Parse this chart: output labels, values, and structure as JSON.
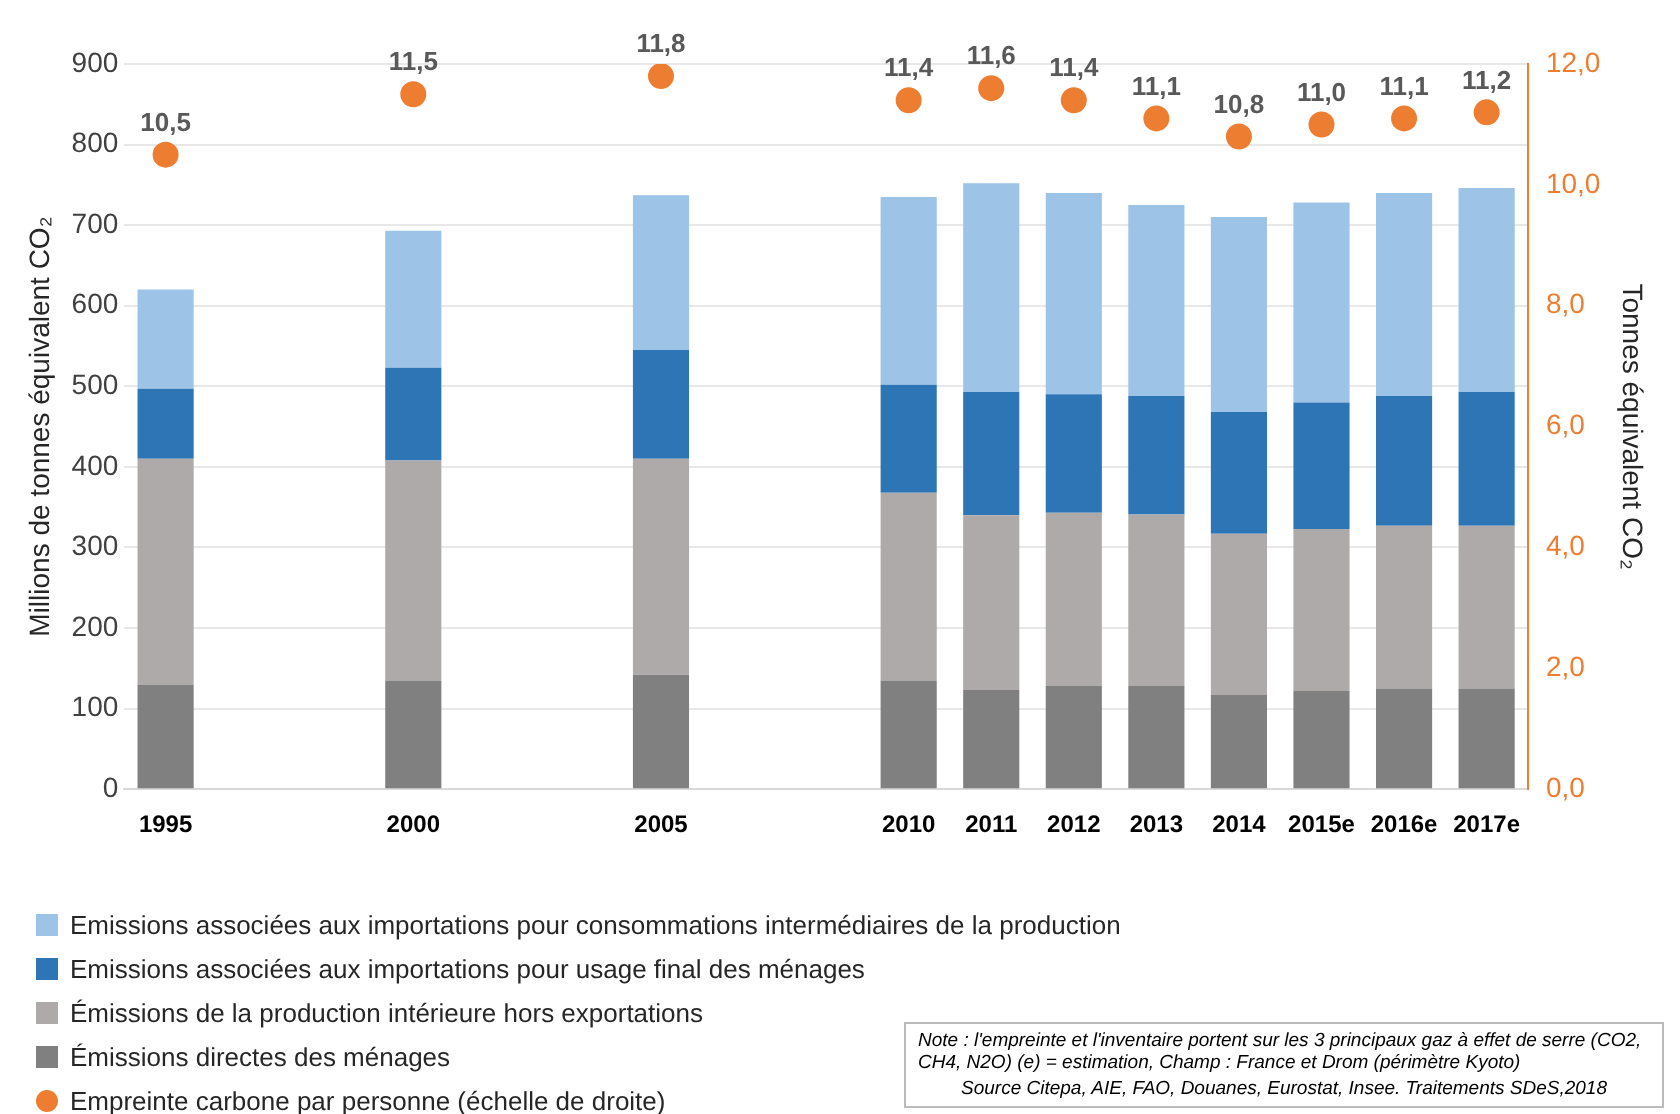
{
  "chart_data": {
    "type": "bar",
    "stacked": true,
    "categories": [
      "1995",
      null,
      null,
      "2000",
      null,
      null,
      "2005",
      null,
      null,
      "2010",
      "2011",
      "2012",
      "2013",
      "2014",
      "2015e",
      "2016e",
      "2017e"
    ],
    "series": [
      {
        "name": "Émissions directes des ménages",
        "color": "#808080",
        "values": [
          130,
          null,
          null,
          135,
          null,
          null,
          142,
          null,
          null,
          135,
          123,
          128,
          128,
          117,
          122,
          125,
          125
        ]
      },
      {
        "name": "Émissions de la production intérieure hors exportations",
        "color": "#aeaaaa",
        "values": [
          280,
          null,
          null,
          273,
          null,
          null,
          268,
          null,
          null,
          233,
          217,
          215,
          213,
          200,
          201,
          202,
          202
        ]
      },
      {
        "name": "Emissions associées aux importations pour usage final des ménages",
        "color": "#2e75b6",
        "values": [
          87,
          null,
          null,
          115,
          null,
          null,
          135,
          null,
          null,
          134,
          153,
          147,
          147,
          151,
          157,
          161,
          166
        ]
      },
      {
        "name": "Emissions associées aux importations pour consommations intermédiaires de la production",
        "color": "#9dc3e6",
        "values": [
          123,
          null,
          null,
          170,
          null,
          null,
          192,
          null,
          null,
          233,
          259,
          250,
          237,
          242,
          248,
          252,
          253
        ]
      },
      {
        "name": "Empreinte carbone par personne (échelle de droite)",
        "type": "scatter",
        "axis": "y2",
        "marker": "circle",
        "color": "#ed7d31",
        "values": [
          10.5,
          null,
          null,
          11.5,
          null,
          null,
          11.8,
          null,
          null,
          11.4,
          11.6,
          11.4,
          11.1,
          10.8,
          11.0,
          11.1,
          11.2
        ],
        "value_labels": [
          "10,5",
          null,
          null,
          "11,5",
          null,
          null,
          "11,8",
          null,
          null,
          "11,4",
          "11,6",
          "11,4",
          "11,1",
          "10,8",
          "11,0",
          "11,1",
          "11,2"
        ]
      }
    ],
    "ylabel": "Millions de tonnes équivalent CO₂",
    "y2label": "Tonnes équivalent CO₂",
    "ylim": [
      0,
      900
    ],
    "yticks": [
      0,
      100,
      200,
      300,
      400,
      500,
      600,
      700,
      800,
      900
    ],
    "y2lim": [
      0,
      12
    ],
    "y2ticks": [
      {
        "value": 0,
        "label": "0,0"
      },
      {
        "value": 2,
        "label": "2,0"
      },
      {
        "value": 4,
        "label": "4,0"
      },
      {
        "value": 6,
        "label": "6,0"
      },
      {
        "value": 8,
        "label": "8,0"
      },
      {
        "value": 10,
        "label": "10,0"
      },
      {
        "value": 12,
        "label": "12,0"
      }
    ],
    "grid": "y",
    "legend": "bottom",
    "annotations": [
      "Note : l'empreinte et l'inventaire portent sur les 3 principaux gaz à effet de serre (CO2, CH4, N2O) (e) = estimation, Champ : France et Drom (périmètre Kyoto)",
      "Source Citepa, AIE, FAO, Douanes, Eurostat, Insee. Traitements SDeS,2018"
    ]
  }
}
